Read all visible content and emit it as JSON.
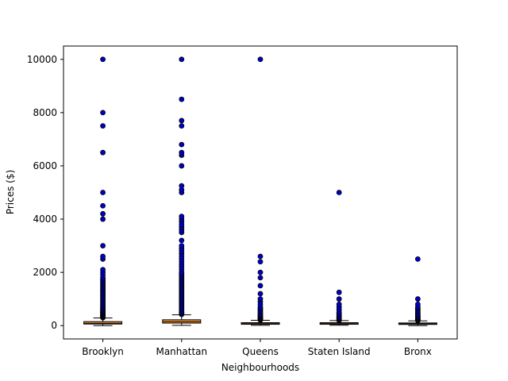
{
  "chart_data": {
    "type": "box",
    "title": "",
    "xlabel": "Neighbourhoods",
    "ylabel": "Prices ($)",
    "ylim": [
      -500,
      10500
    ],
    "yticks": [
      0,
      2000,
      4000,
      6000,
      8000,
      10000
    ],
    "grid": false,
    "legend": "none",
    "colors": {
      "box_fill": "#ff9933",
      "outlier_fill": "#0000cc",
      "median": "#000000"
    },
    "categories": [
      "Brooklyn",
      "Manhattan",
      "Queens",
      "Staten Island",
      "Bronx"
    ],
    "boxes": [
      {
        "name": "Brooklyn",
        "whisker_low": 0,
        "q1": 60,
        "median": 90,
        "q3": 150,
        "whisker_high": 285,
        "outliers": [
          300,
          320,
          340,
          360,
          380,
          400,
          420,
          450,
          480,
          500,
          520,
          550,
          580,
          600,
          640,
          680,
          720,
          760,
          800,
          850,
          900,
          950,
          1000,
          1050,
          1100,
          1150,
          1200,
          1250,
          1300,
          1350,
          1400,
          1450,
          1500,
          1550,
          1600,
          1650,
          1700,
          1750,
          1800,
          1900,
          2000,
          2100,
          2500,
          2600,
          3000,
          4000,
          4200,
          4500,
          5000,
          6500,
          7500,
          8000,
          10000
        ]
      },
      {
        "name": "Manhattan",
        "whisker_low": 10,
        "q1": 95,
        "median": 150,
        "q3": 220,
        "whisker_high": 405,
        "outliers": [
          420,
          450,
          480,
          500,
          550,
          600,
          650,
          700,
          750,
          800,
          850,
          900,
          950,
          1000,
          1050,
          1100,
          1150,
          1200,
          1250,
          1300,
          1350,
          1400,
          1450,
          1500,
          1550,
          1600,
          1650,
          1700,
          1750,
          1800,
          1850,
          1900,
          1950,
          2000,
          2100,
          2200,
          2300,
          2400,
          2500,
          2600,
          2700,
          2800,
          2900,
          3000,
          3200,
          3500,
          3600,
          3700,
          3800,
          3900,
          4000,
          4100,
          5000,
          5100,
          5250,
          6000,
          6400,
          6500,
          6800,
          7500,
          7700,
          8500,
          10000
        ]
      },
      {
        "name": "Queens",
        "whisker_low": 10,
        "q1": 50,
        "median": 75,
        "q3": 110,
        "whisker_high": 200,
        "outliers": [
          210,
          230,
          250,
          280,
          300,
          320,
          350,
          380,
          400,
          450,
          500,
          550,
          600,
          650,
          700,
          800,
          900,
          1000,
          1200,
          1500,
          1800,
          2000,
          2400,
          2600,
          10000
        ]
      },
      {
        "name": "Staten Island",
        "whisker_low": 13,
        "q1": 50,
        "median": 75,
        "q3": 110,
        "whisker_high": 190,
        "outliers": [
          200,
          220,
          250,
          280,
          300,
          350,
          400,
          450,
          500,
          600,
          700,
          800,
          1000,
          1250,
          5000
        ]
      },
      {
        "name": "Bronx",
        "whisker_low": 0,
        "q1": 45,
        "median": 65,
        "q3": 100,
        "whisker_high": 180,
        "outliers": [
          190,
          210,
          230,
          250,
          280,
          300,
          330,
          360,
          400,
          450,
          500,
          550,
          600,
          650,
          700,
          800,
          1000,
          2500
        ]
      }
    ]
  }
}
